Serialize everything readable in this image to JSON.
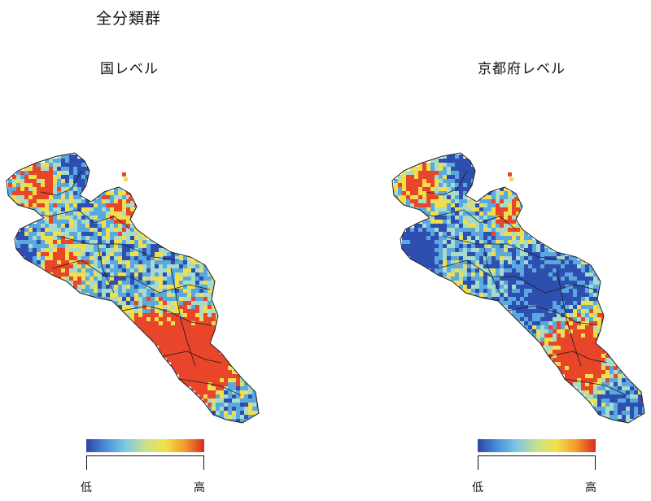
{
  "title": "全分類群",
  "panels": [
    {
      "title": "国レベル"
    },
    {
      "title": "京都府レベル"
    }
  ],
  "legend": {
    "low": "低",
    "high": "高",
    "colors": [
      "#2b45a8",
      "#4a8fd8",
      "#7fc8e6",
      "#c8e08a",
      "#f0e34a",
      "#f39a2e",
      "#d92b1f"
    ]
  },
  "map_colors": {
    "low": "#2f4fb0",
    "mid_low": "#5aa8e0",
    "mid": "#a8dcc8",
    "mid_high": "#f0de4a",
    "high": "#e8452a",
    "boundary": "#1a1a1a"
  }
}
